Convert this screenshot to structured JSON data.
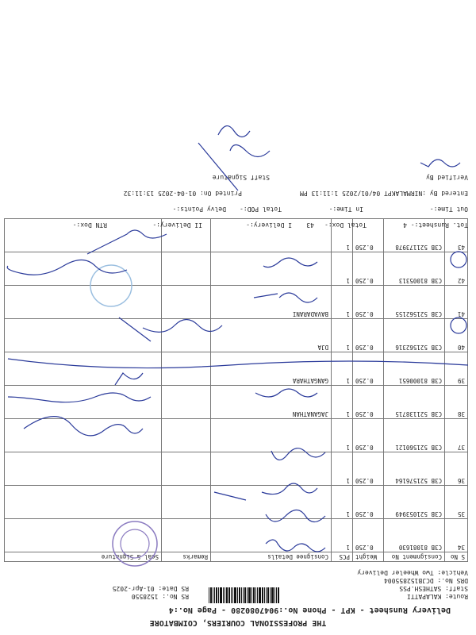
{
  "header": {
    "company": "THE PROFESSIONAL COURIERS, COIMBATORE",
    "subtitle": "Delivery Runsheet - KPT - Phone No.:9047080280 - Page No.:4",
    "route": "Route: KALAPATTI",
    "staff": "Staff: SATHESH.PSS",
    "drs": "DRS No.: DCJB152855004",
    "vehicle": "Vehicle: Two Wheeler Delivery",
    "rs_no": "RS No.: 1528550",
    "rs_date": "RS Date: 01-Apr-2025"
  },
  "table": {
    "columns": [
      "S No",
      "Consignment No",
      "Weight",
      "PCS",
      "Consignee Details",
      "Remarks",
      "Seal & Signature"
    ],
    "rows": [
      {
        "sno": "34",
        "cno": "C3B 81081630",
        "weight": "0.250",
        "pcs": "1",
        "consignee": ""
      },
      {
        "sno": "35",
        "cno": "C3B 521053949",
        "weight": "0.250",
        "pcs": "1",
        "consignee": ""
      },
      {
        "sno": "36",
        "cno": "C3B 521576164",
        "weight": "0.250",
        "pcs": "1",
        "consignee": ""
      },
      {
        "sno": "37",
        "cno": "C3B 521560121",
        "weight": "0.250",
        "pcs": "1",
        "consignee": ""
      },
      {
        "sno": "38",
        "cno": "C3B 521138715",
        "weight": "0.250",
        "pcs": "1",
        "consignee": "JAGANATHAN"
      },
      {
        "sno": "39",
        "cno": "C3B 81000651",
        "weight": "0.250",
        "pcs": "1",
        "consignee": "GANGATHARA"
      },
      {
        "sno": "40",
        "cno": "C3B 521562316",
        "weight": "0.250",
        "pcs": "1",
        "consignee": "DJA"
      },
      {
        "sno": "41",
        "cno": "C3B 521562155",
        "weight": "0.250",
        "pcs": "1",
        "consignee": "BAVADARANI"
      },
      {
        "sno": "42",
        "cno": "C3B 81005313",
        "weight": "0.250",
        "pcs": "1",
        "consignee": ""
      },
      {
        "sno": "43",
        "cno": "C3B 521173978",
        "weight": "0.250",
        "pcs": "1",
        "consignee": ""
      }
    ]
  },
  "footer": {
    "tot_runsheet": "Tot. Runsheet:- 4",
    "total_dox": "Total Dox:-",
    "total_dox_value": "43",
    "i_delivery": "I Delivery:-",
    "ii_delivery": "II Delivery:-",
    "rtn_dox": "RTN Dox:-",
    "out_time": "Out Time:-",
    "in_time": "In Time:-",
    "total_pod": "Total POD:-",
    "delvy_points": "Delvy Points:-",
    "entered_by": "Entered By :NIRMALAKPT 04/01/2025 1:11:13 PM",
    "printed_on": "Printed On: 01-04-2025 13:11:32",
    "verified_by": "Verified By",
    "staff_signature": "Staff Signature"
  },
  "colors": {
    "ink": "#2a3a9a",
    "stamp": "#8a7ac0"
  }
}
